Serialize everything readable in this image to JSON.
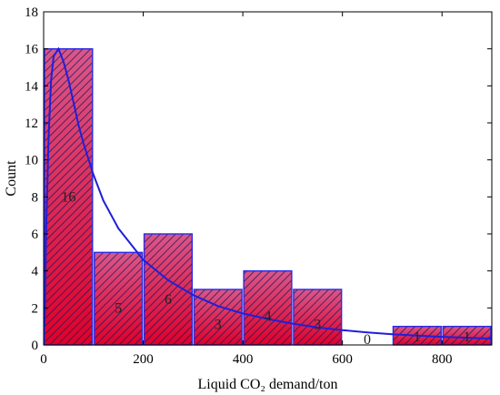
{
  "chart_data": {
    "type": "bar",
    "bins": [
      {
        "x0": 0,
        "x1": 100,
        "value": 16,
        "label": "16"
      },
      {
        "x0": 100,
        "x1": 200,
        "value": 5,
        "label": "5"
      },
      {
        "x0": 200,
        "x1": 300,
        "value": 6,
        "label": "6"
      },
      {
        "x0": 300,
        "x1": 400,
        "value": 3,
        "label": "3"
      },
      {
        "x0": 400,
        "x1": 500,
        "value": 4,
        "label": "4"
      },
      {
        "x0": 500,
        "x1": 600,
        "value": 3,
        "label": "3"
      },
      {
        "x0": 600,
        "x1": 700,
        "value": 0,
        "label": "0"
      },
      {
        "x0": 700,
        "x1": 800,
        "value": 1,
        "label": "1"
      },
      {
        "x0": 800,
        "x1": 900,
        "value": 1,
        "label": "1"
      }
    ],
    "fit_curve": {
      "type": "lognormal",
      "color": "#1f1fdb",
      "points": [
        [
          2,
          1.0
        ],
        [
          5,
          6.0
        ],
        [
          10,
          11.3
        ],
        [
          15,
          14.3
        ],
        [
          20,
          15.6
        ],
        [
          30,
          16.0
        ],
        [
          40,
          15.3
        ],
        [
          50,
          14.3
        ],
        [
          60,
          13.1
        ],
        [
          70,
          11.9
        ],
        [
          80,
          10.9
        ],
        [
          100,
          9.2
        ],
        [
          120,
          7.8
        ],
        [
          150,
          6.3
        ],
        [
          200,
          4.6
        ],
        [
          250,
          3.5
        ],
        [
          300,
          2.7
        ],
        [
          350,
          2.1
        ],
        [
          400,
          1.7
        ],
        [
          450,
          1.4
        ],
        [
          500,
          1.15
        ],
        [
          550,
          0.95
        ],
        [
          600,
          0.8
        ],
        [
          650,
          0.68
        ],
        [
          700,
          0.58
        ],
        [
          750,
          0.5
        ],
        [
          800,
          0.44
        ],
        [
          850,
          0.39
        ],
        [
          900,
          0.34
        ]
      ]
    },
    "xlabel": "Liquid CO₂ demand/ton",
    "ylabel": "Count",
    "xlim": [
      0,
      900
    ],
    "ylim": [
      0,
      18
    ],
    "xticks": [
      0,
      200,
      400,
      600,
      800
    ],
    "yticks": [
      0,
      2,
      4,
      6,
      8,
      10,
      12,
      14,
      16,
      18
    ],
    "grid": false,
    "colors": {
      "bar_fill_top": "#d9578a",
      "bar_fill_bottom": "#e0002a",
      "bar_edge": "#2a2ae6",
      "hatch": "#1a1a55",
      "curve": "#1f1fdb"
    }
  }
}
